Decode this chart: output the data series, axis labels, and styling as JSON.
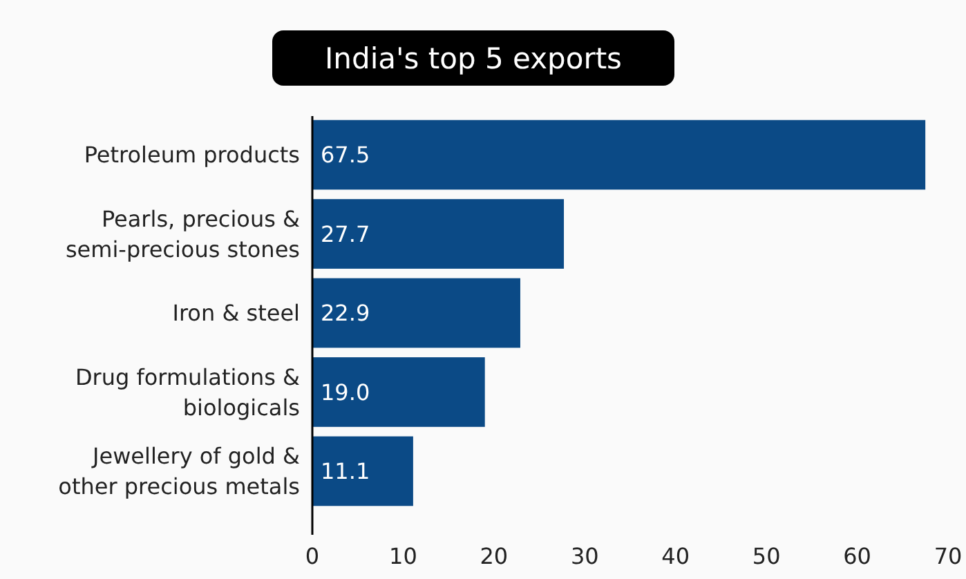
{
  "chart_data": {
    "type": "bar",
    "orientation": "horizontal",
    "title": "India's top 5 exports",
    "categories": [
      "Petroleum products",
      "Pearls, precious & semi-precious stones",
      "Iron & steel",
      "Drug formulations & biologicals",
      "Jewellery of gold & other precious metals"
    ],
    "values": [
      67.5,
      27.7,
      22.9,
      19.0,
      11.1
    ],
    "value_labels": [
      "67.5",
      "27.7",
      "22.9",
      "19.0",
      "11.1"
    ],
    "color": "#0b4a86",
    "xlim": [
      0,
      70
    ],
    "xticks": [
      0,
      10,
      20,
      30,
      40,
      50,
      60,
      70
    ],
    "grid": false
  }
}
